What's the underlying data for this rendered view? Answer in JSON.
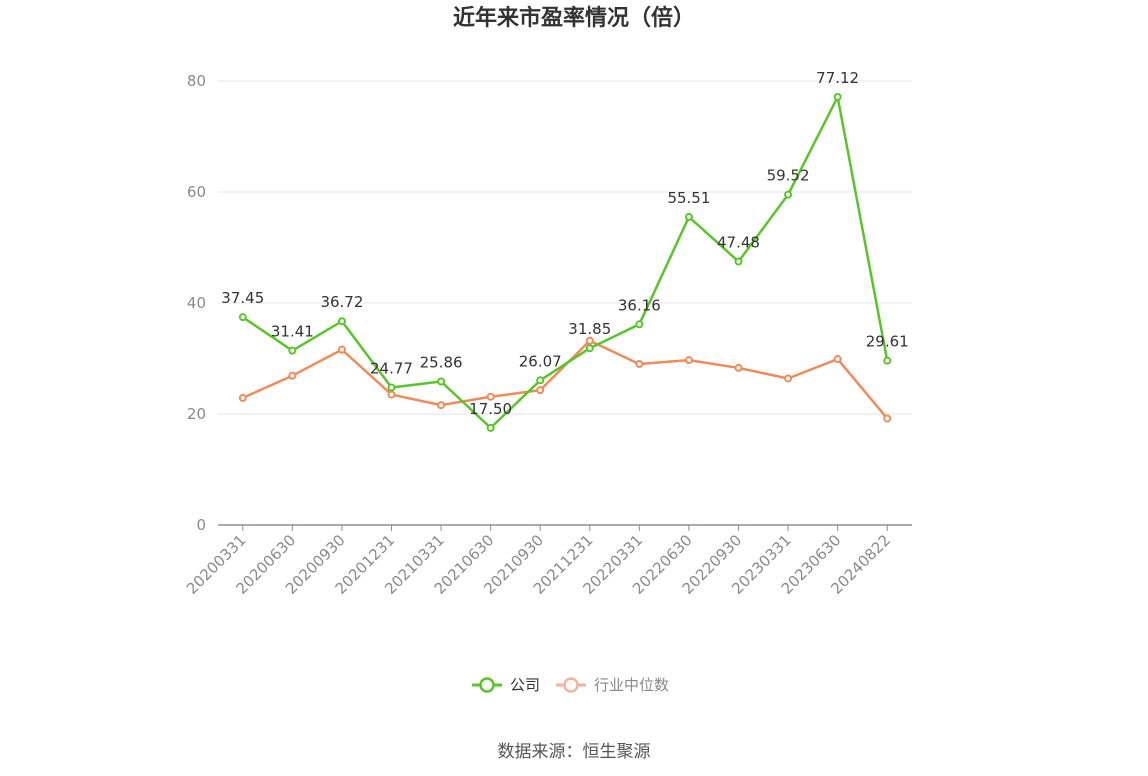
{
  "chart_data": {
    "type": "line",
    "title": "近年来市盈率情况（倍）",
    "categories": [
      "20200331",
      "20200630",
      "20200930",
      "20201231",
      "20210331",
      "20210630",
      "20210930",
      "20211231",
      "20220331",
      "20220630",
      "20220930",
      "20230331",
      "20230630",
      "20240822"
    ],
    "ylim": [
      0,
      80
    ],
    "yticks": [
      0,
      20,
      40,
      60,
      80
    ],
    "grid": true,
    "legend_position": "bottom",
    "series": [
      {
        "name": "公司",
        "color": "#5ac42b",
        "values": [
          37.45,
          31.41,
          36.72,
          24.77,
          25.86,
          17.5,
          26.07,
          31.85,
          36.16,
          55.51,
          47.48,
          59.52,
          77.12,
          29.61
        ],
        "labels": [
          "37.45",
          "31.41",
          "36.72",
          "24.77",
          "25.86",
          "17.50",
          "26.07",
          "31.85",
          "36.16",
          "55.51",
          "47.48",
          "59.52",
          "77.12",
          "29.61"
        ]
      },
      {
        "name": "行业中位数",
        "color": "#f08a58",
        "values": [
          22.9,
          26.9,
          31.6,
          23.5,
          21.6,
          23.1,
          24.3,
          33.2,
          29.0,
          29.7,
          28.3,
          26.4,
          29.9,
          19.2
        ]
      }
    ]
  },
  "source_text": "数据来源：恒生聚源"
}
